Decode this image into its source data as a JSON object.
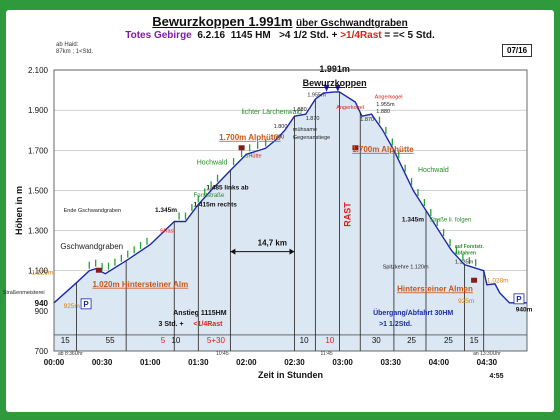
{
  "header": {
    "title_main": "Bewurzkoppen 1.991m",
    "title_sub": "über Gschwandtgraben",
    "region": "Totes Gebirge",
    "date": "6.2.16",
    "start_hm": "1145 HM",
    "time_long": ">4 1/2 Std.",
    "rest_rule": ">1/4Rast",
    "time_total": "=< 5 Std.",
    "page": "07/16",
    "stats": "ab Haid:\n87km ; 1<Std."
  },
  "chart_data": {
    "type": "area",
    "title": "Bewurzkoppen 1.991m über Gschwandtgraben",
    "xlabel": "Zeit in Stunden",
    "ylabel": "Höhen in m",
    "xlim": [
      0,
      295
    ],
    "ylim": [
      700,
      2100
    ],
    "y_ticks": [
      700,
      900,
      940,
      1100,
      1300,
      1500,
      1700,
      1900,
      2100
    ],
    "y_tick_labels": [
      "700",
      "900",
      "940",
      "1.100",
      "1.300",
      "1.500",
      "1.700",
      "1.900",
      "2.100"
    ],
    "x_ticks": [
      0,
      30,
      60,
      90,
      120,
      150,
      180,
      210,
      240,
      270
    ],
    "x_tick_labels": [
      "00:00",
      "00:30",
      "01:00",
      "01:30",
      "02:00",
      "02:30",
      "03:00",
      "03:30",
      "04:00",
      "04:30"
    ],
    "grid": true,
    "profile": {
      "x": [
        0,
        14,
        22,
        26,
        32,
        45,
        60,
        75,
        82,
        90,
        98,
        110,
        120,
        132,
        138,
        144,
        150,
        157,
        163,
        168,
        175,
        178,
        188,
        192,
        198,
        205,
        212,
        224,
        232,
        240,
        248,
        256,
        268,
        270,
        275,
        278,
        284,
        295
      ],
      "y": [
        940,
        1040,
        1100,
        1110,
        1085,
        1150,
        1230,
        1345,
        1345,
        1430,
        1500,
        1600,
        1680,
        1710,
        1750,
        1800,
        1870,
        1880,
        1955,
        1985,
        1991,
        1991,
        1940,
        1870,
        1880,
        1800,
        1700,
        1500,
        1400,
        1300,
        1200,
        1130,
        1100,
        1030,
        1035,
        990,
        940,
        940
      ]
    },
    "segment_lines_x": [
      14,
      45,
      75,
      90,
      110,
      150,
      163,
      178,
      191,
      212,
      232,
      256,
      268
    ],
    "segment_durations": [
      {
        "x": 7,
        "label": "15",
        "red": false
      },
      {
        "x": 35,
        "label": "55",
        "red": false
      },
      {
        "x": 68,
        "label": "5",
        "red": true
      },
      {
        "x": 76,
        "label": "10",
        "red": false
      },
      {
        "x": 101,
        "label": "5+30",
        "red": true
      },
      {
        "x": 156,
        "label": "10",
        "red": false
      },
      {
        "x": 172,
        "label": "10",
        "red": true
      },
      {
        "x": 201,
        "label": "30",
        "red": false
      },
      {
        "x": 223,
        "label": "25",
        "red": false
      },
      {
        "x": 246,
        "label": "25",
        "red": false
      },
      {
        "x": 262,
        "label": "15",
        "red": false
      }
    ],
    "small_times": [
      {
        "x": 0,
        "label": "ab 8:36Uhr"
      },
      {
        "x": 105,
        "label": "10:45"
      },
      {
        "x": 170,
        "label": "11:45"
      },
      {
        "x": 270,
        "label": "an 13:30Uhr"
      }
    ],
    "end_time_label": "4:55",
    "annotations": [
      {
        "id": "summit",
        "x": 175,
        "y": 2090,
        "text": "1.991m",
        "style": "summit-top"
      },
      {
        "id": "summit-name",
        "x": 175,
        "y": 2020,
        "text": "Bewurzkoppen",
        "style": "summit-name"
      },
      {
        "id": "lichter",
        "x": 117,
        "y": 1880,
        "text": "lichter Lärchenwald",
        "style": "green"
      },
      {
        "id": "p1955a",
        "x": 158,
        "y": 1968,
        "text": "1.955m",
        "style": "small"
      },
      {
        "id": "p1880a",
        "x": 149,
        "y": 1895,
        "text": "1.880",
        "style": "small"
      },
      {
        "id": "p1870a",
        "x": 157,
        "y": 1852,
        "text": "1.870",
        "style": "small"
      },
      {
        "id": "p1800",
        "x": 137,
        "y": 1812,
        "text": "1.800",
        "style": "small"
      },
      {
        "id": "muehsame1",
        "x": 149,
        "y": 1796,
        "text": "mühsame",
        "style": "small"
      },
      {
        "id": "muehsame2",
        "x": 149,
        "y": 1755,
        "text": "Gegenanstiege",
        "style": "small"
      },
      {
        "id": "p1790",
        "x": 135,
        "y": 1758,
        "text": "1.790",
        "style": "small"
      },
      {
        "id": "angerkogel1",
        "x": 176,
        "y": 1905,
        "text": "Angerkogel",
        "style": "red-small"
      },
      {
        "id": "angerkogel2",
        "x": 200,
        "y": 1958,
        "text": "Angerkogel",
        "style": "red-small"
      },
      {
        "id": "p1955b",
        "x": 201,
        "y": 1920,
        "text": "1.955m",
        "style": "small"
      },
      {
        "id": "p1880b",
        "x": 201,
        "y": 1885,
        "text": "1.880",
        "style": "small"
      },
      {
        "id": "p1870b",
        "x": 191,
        "y": 1845,
        "text": "1.870",
        "style": "small"
      },
      {
        "id": "alphuette1",
        "x": 103,
        "y": 1752,
        "text": "1.700m Alphütte",
        "style": "orange-big"
      },
      {
        "id": "shuette1",
        "x": 119,
        "y": 1665,
        "text": "SHütte",
        "style": "red-small"
      },
      {
        "id": "hochwald1",
        "x": 89,
        "y": 1630,
        "text": "Hochwald",
        "style": "green"
      },
      {
        "id": "alphuette2",
        "x": 186,
        "y": 1692,
        "text": "1.700m Alphütte",
        "style": "orange-big"
      },
      {
        "id": "hochwald2",
        "x": 227,
        "y": 1592,
        "text": "Hochwald",
        "style": "green"
      },
      {
        "id": "p1485",
        "x": 95,
        "y": 1505,
        "text": "1.485 links ab",
        "style": "black-mixed"
      },
      {
        "id": "forststrasse",
        "x": 87,
        "y": 1467,
        "text": "Forststraße",
        "style": "green-small"
      },
      {
        "id": "p1415",
        "x": 87,
        "y": 1420,
        "text": "1.415m rechts",
        "style": "black-mixed"
      },
      {
        "id": "ende",
        "x": 6,
        "y": 1393,
        "text": "Ende Gschwandgraben",
        "style": "small"
      },
      {
        "id": "p1345a",
        "x": 63,
        "y": 1393,
        "text": "1.345m",
        "style": "black-mixed"
      },
      {
        "id": "srast",
        "x": 66,
        "y": 1290,
        "text": "SRast",
        "style": "red-small"
      },
      {
        "id": "gschwand",
        "x": 4,
        "y": 1208,
        "text": "Gschwandgraben",
        "style": "label-med"
      },
      {
        "id": "p1345b",
        "x": 217,
        "y": 1345,
        "text": "1.345m",
        "style": "black-mixed"
      },
      {
        "id": "strasse",
        "x": 234,
        "y": 1345,
        "text": "Straße li. folgen",
        "style": "green-small"
      },
      {
        "id": "forstr1",
        "x": 250,
        "y": 1212,
        "text": "auf Forststr.",
        "style": "green-tiny"
      },
      {
        "id": "forstr2",
        "x": 250,
        "y": 1182,
        "text": "abfahren",
        "style": "green-tiny"
      },
      {
        "id": "spitzkehre",
        "x": 205,
        "y": 1112,
        "text": "Spitzkehre 1.120m",
        "style": "small"
      },
      {
        "id": "p1135",
        "x": 250,
        "y": 1135,
        "text": "1.135m",
        "style": "small"
      },
      {
        "id": "p1129",
        "x": -14,
        "y": 1082,
        "text": "1.129m",
        "style": "orange-small"
      },
      {
        "id": "p1028",
        "x": 270,
        "y": 1042,
        "text": "1.028m",
        "style": "orange-small"
      },
      {
        "id": "alm1",
        "x": 24,
        "y": 1020,
        "text": "1.020m Hintersteiner Alm",
        "style": "orange-big"
      },
      {
        "id": "alm2",
        "x": 214,
        "y": 997,
        "text": "Hintersteiner Almen",
        "style": "orange-big"
      },
      {
        "id": "strassen",
        "x": -32,
        "y": 985,
        "text": "Straßenmeisterei",
        "style": "small"
      },
      {
        "id": "p925a",
        "x": 6,
        "y": 915,
        "text": "925m",
        "style": "orange-small"
      },
      {
        "id": "p925b",
        "x": 252,
        "y": 938,
        "text": "925m",
        "style": "orange-small"
      },
      {
        "id": "p940r",
        "x": 288,
        "y": 898,
        "text": "940m",
        "style": "black-mixed"
      },
      {
        "id": "dist",
        "x": 127,
        "y": 1225,
        "text": "14,7 km",
        "style": "label-bold"
      },
      {
        "id": "rast",
        "x": 183,
        "y": 1380,
        "text": "RAST",
        "style": "rast"
      },
      {
        "id": "anstieg1",
        "x": 91,
        "y": 880,
        "text": "Anstieg 1115HM",
        "style": "center-bold"
      },
      {
        "id": "anstieg2a",
        "x": 73,
        "y": 825,
        "text": "3 Std. +",
        "style": "center-bold"
      },
      {
        "id": "anstieg2b",
        "x": 96,
        "y": 825,
        "text": "<1/4Rast",
        "style": "center-red"
      },
      {
        "id": "abfahrt1",
        "x": 224,
        "y": 880,
        "text": "Übergang/Abfahrt   30HM",
        "style": "center-blue"
      },
      {
        "id": "abfahrt2",
        "x": 213,
        "y": 825,
        "text": ">1 1/2Std.",
        "style": "center-blue"
      },
      {
        "id": "parking-left",
        "x": -37,
        "y": 940,
        "text": "P",
        "style": "parking"
      },
      {
        "id": "parking-mid",
        "x": 20,
        "y": 920,
        "text": "P",
        "style": "parking"
      },
      {
        "id": "parking-right",
        "x": 290,
        "y": 945,
        "text": "P",
        "style": "parking"
      }
    ]
  }
}
